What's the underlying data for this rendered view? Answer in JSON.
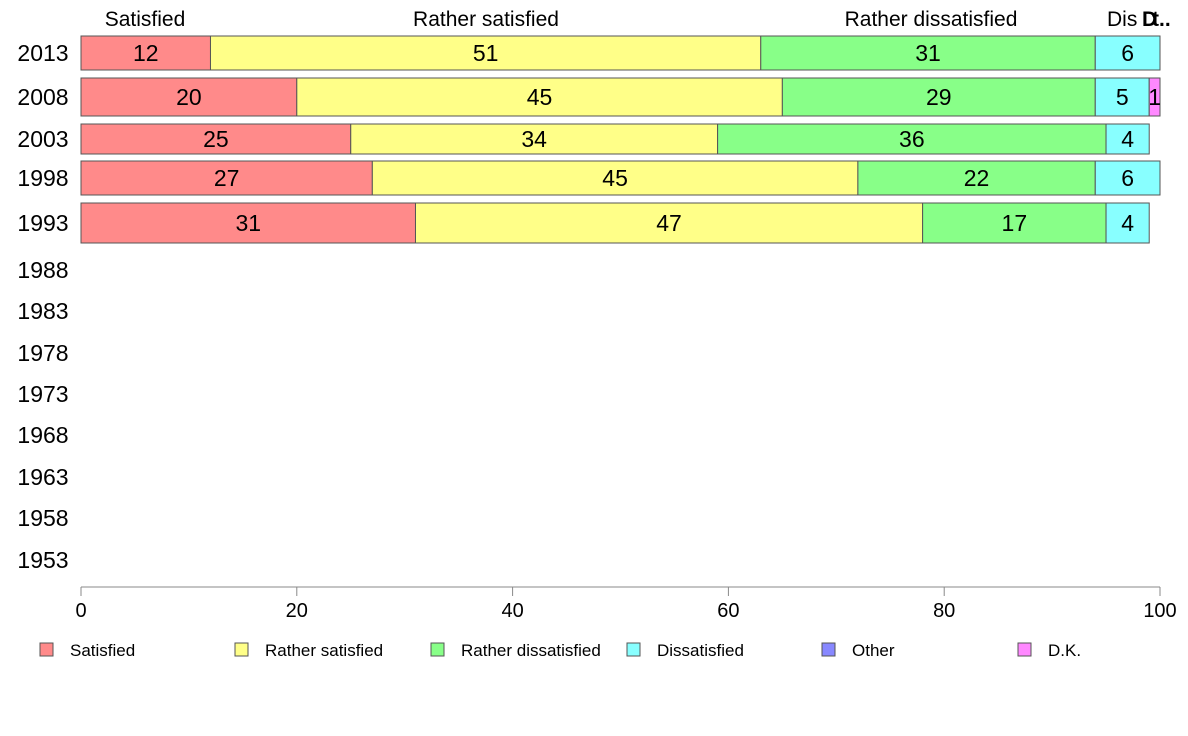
{
  "chart_data": {
    "type": "bar",
    "orientation": "horizontal",
    "stacked": true,
    "top_labels": [
      "Satisfied",
      "Rather satisfied",
      "Rather dissatisfied",
      "Dis",
      "D",
      "t.."
    ],
    "categories": [
      "2013",
      "2008",
      "2003",
      "1998",
      "1993",
      "1988",
      "1983",
      "1978",
      "1973",
      "1968",
      "1963",
      "1958",
      "1953"
    ],
    "series": [
      {
        "name": "Satisfied",
        "color": "#ff8a8a",
        "values": [
          12,
          20,
          25,
          27,
          31,
          null,
          null,
          null,
          null,
          null,
          null,
          null,
          null
        ]
      },
      {
        "name": "Rather satisfied",
        "color": "#ffff88",
        "values": [
          51,
          45,
          34,
          45,
          47,
          null,
          null,
          null,
          null,
          null,
          null,
          null,
          null
        ]
      },
      {
        "name": "Rather dissatisfied",
        "color": "#88ff88",
        "values": [
          31,
          29,
          36,
          22,
          17,
          null,
          null,
          null,
          null,
          null,
          null,
          null,
          null
        ]
      },
      {
        "name": "Dissatisfied",
        "color": "#88ffff",
        "values": [
          6,
          5,
          4,
          6,
          4,
          null,
          null,
          null,
          null,
          null,
          null,
          null,
          null
        ]
      },
      {
        "name": "Other",
        "color": "#8888ff",
        "values": [
          0,
          0,
          0,
          0,
          0,
          null,
          null,
          null,
          null,
          null,
          null,
          null,
          null
        ]
      },
      {
        "name": "D.K.",
        "color": "#ff88ff",
        "values": [
          0,
          1,
          0,
          0,
          0,
          null,
          null,
          null,
          null,
          null,
          null,
          null,
          null
        ]
      }
    ],
    "xlim": [
      0,
      100
    ],
    "xticks": [
      "0",
      "20",
      "40",
      "60",
      "80",
      "100"
    ],
    "legend_position": "bottom",
    "grid": false
  }
}
